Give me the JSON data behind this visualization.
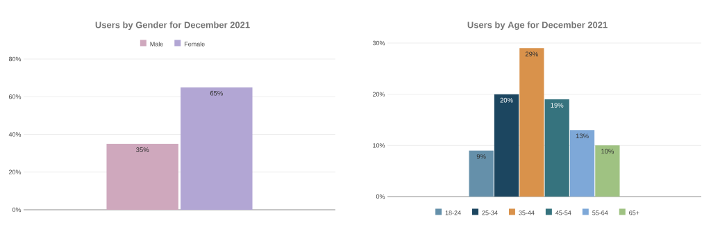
{
  "chart_data": [
    {
      "type": "bar",
      "title": "Users by Gender for December 2021",
      "categories": [
        null
      ],
      "series": [
        {
          "name": "Male",
          "color": "#cfa8bd",
          "values": [
            35
          ],
          "value_labels": [
            "35%"
          ]
        },
        {
          "name": "Female",
          "color": "#b2a6d4",
          "values": [
            65
          ],
          "value_labels": [
            "65%"
          ]
        }
      ],
      "ylim": [
        0,
        80
      ],
      "yticks": [
        {
          "value": 0,
          "label": "0%"
        },
        {
          "value": 20,
          "label": "20%"
        },
        {
          "value": 40,
          "label": "40%"
        },
        {
          "value": 60,
          "label": "60%"
        },
        {
          "value": 80,
          "label": "80%"
        }
      ],
      "grid": "y",
      "legend": "top"
    },
    {
      "type": "bar",
      "title": "Users by Age for December 2021",
      "categories": [
        null
      ],
      "series": [
        {
          "name": "18-24",
          "color": "#6590aa",
          "values": [
            9
          ],
          "value_labels": [
            "9%"
          ]
        },
        {
          "name": "25-34",
          "color": "#1c4660",
          "values": [
            20
          ],
          "value_labels": [
            "20%"
          ]
        },
        {
          "name": "35-44",
          "color": "#d9924b",
          "values": [
            29
          ],
          "value_labels": [
            "29%"
          ]
        },
        {
          "name": "45-54",
          "color": "#36737e",
          "values": [
            19
          ],
          "value_labels": [
            "19%"
          ]
        },
        {
          "name": "55-64",
          "color": "#7ea8d8",
          "values": [
            13
          ],
          "value_labels": [
            "13%"
          ]
        },
        {
          "name": "65+",
          "color": "#9fc282",
          "values": [
            10
          ],
          "value_labels": [
            "10%"
          ]
        }
      ],
      "ylim": [
        0,
        30
      ],
      "yticks": [
        {
          "value": 0,
          "label": "0%"
        },
        {
          "value": 10,
          "label": "10%"
        },
        {
          "value": 20,
          "label": "20%"
        },
        {
          "value": 30,
          "label": "30%"
        }
      ],
      "grid": "y",
      "legend": "bottom"
    }
  ]
}
